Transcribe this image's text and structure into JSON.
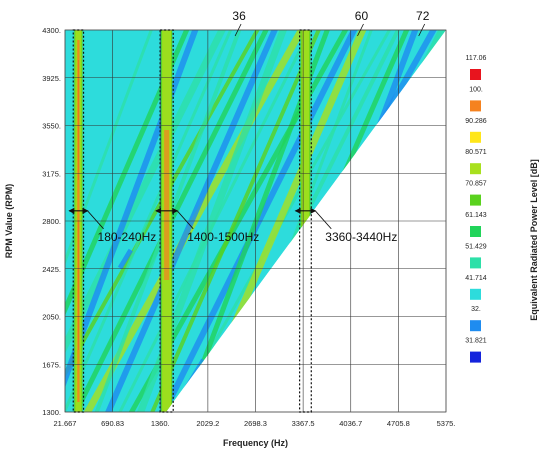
{
  "chart_data": {
    "type": "heatmap",
    "xlabel": "Frequency (Hz)",
    "ylabel": "RPM Value (RPM)",
    "colorbar_label": "Equivalent Radiated Power Level [dB]",
    "xlim": [
      21.667,
      5375
    ],
    "ylim": [
      1300,
      4300
    ],
    "x_ticks": [
      "21.667",
      "690.83",
      "1360.",
      "2029.2",
      "2698.3",
      "3367.5",
      "4036.7",
      "4705.8",
      "5375."
    ],
    "x_tick_values": [
      21.667,
      690.83,
      1360,
      2029.2,
      2698.3,
      3367.5,
      4036.7,
      4705.8,
      5375
    ],
    "y_ticks": [
      "4300.",
      "3925.",
      "3550.",
      "3175.",
      "2800.",
      "2425.",
      "2050.",
      "1675.",
      "1300."
    ],
    "y_tick_values": [
      4300,
      3925,
      3550,
      3175,
      2800,
      2425,
      2050,
      1675,
      1300
    ],
    "grid": true,
    "colorbar": {
      "levels": [
        "117.06",
        "100.",
        "90.286",
        "80.571",
        "70.857",
        "61.143",
        "51.429",
        "41.714",
        "32.",
        "31.821"
      ],
      "colors": [
        "#e8141e",
        "#f5821f",
        "#ffe61a",
        "#a8e01e",
        "#5ad21e",
        "#21d45a",
        "#2de0a8",
        "#2ddcdc",
        "#1e8cf0",
        "#1423dc"
      ]
    },
    "order_lines": [
      {
        "label": "36",
        "freq_at_max_rpm": 2580
      },
      {
        "label": "60",
        "freq_at_max_rpm": 4300
      },
      {
        "label": "72",
        "freq_at_max_rpm": 5160
      }
    ],
    "bands": [
      {
        "label": "180-240Hz",
        "f_min": 180,
        "f_max": 240
      },
      {
        "label": "1400-1500Hz",
        "f_min": 1400,
        "f_max": 1500
      },
      {
        "label": "3360-3440Hz",
        "f_min": 3360,
        "f_max": 3440
      }
    ]
  }
}
